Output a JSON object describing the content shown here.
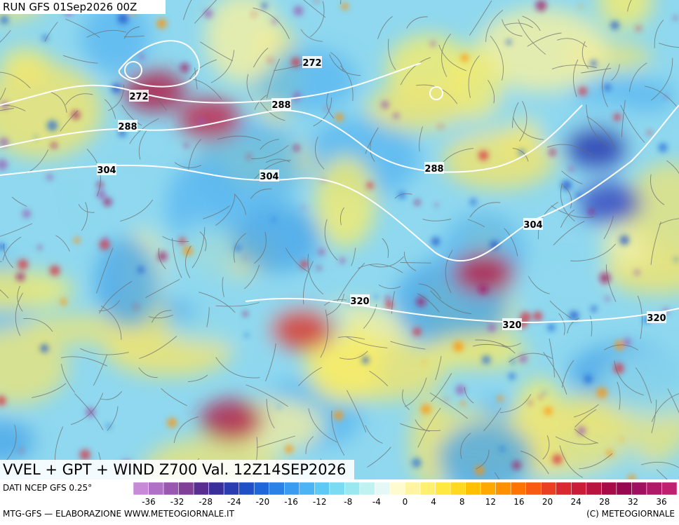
{
  "header": {
    "run": "RUN GFS 01Sep2026 00Z"
  },
  "map": {
    "contour_labels": [
      272,
      272,
      288,
      288,
      288,
      304,
      304,
      304,
      320,
      320,
      320
    ]
  },
  "footer": {
    "title": "VVEL + GPT + WIND Z700 Val. 12Z14SEP2026",
    "source": "DATI NCEP GFS 0.25°",
    "credit_left": "MTG-GFS — ELABORAZIONE WWW.METEOGIORNALE.IT",
    "credit_right": "(C) METEOGIORNALE"
  },
  "colorbar": {
    "ticks": [
      -36,
      -32,
      -28,
      -24,
      -20,
      -16,
      -12,
      -8,
      -4,
      0,
      4,
      8,
      12,
      16,
      20,
      24,
      28,
      32,
      36
    ],
    "colors": [
      "#c88ad8",
      "#b070c8",
      "#9858b0",
      "#804098",
      "#5a2e90",
      "#3a2e9a",
      "#2a3cb0",
      "#2050c8",
      "#1e66da",
      "#2a82e6",
      "#3a9cf0",
      "#4cb4f4",
      "#5ccaf4",
      "#7adcf2",
      "#9ae8f0",
      "#c0f2f2",
      "#e6f8f6",
      "#fffbd0",
      "#fff5a0",
      "#fff070",
      "#ffe840",
      "#ffd820",
      "#ffc000",
      "#ffa800",
      "#ff9000",
      "#ff7400",
      "#f85a10",
      "#e84020",
      "#d82830",
      "#c81c38",
      "#b81440",
      "#a80c48",
      "#980850",
      "#a01060",
      "#b01868",
      "#c02070"
    ]
  }
}
